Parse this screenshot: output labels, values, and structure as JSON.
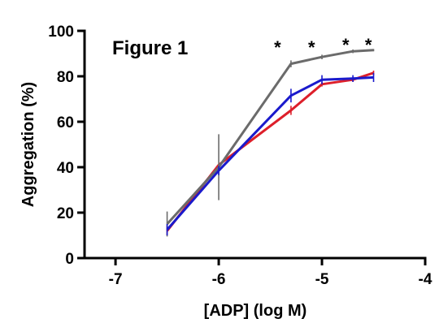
{
  "chart_data": {
    "type": "line",
    "title": "Figure 1",
    "xlabel": "[ADP] (log M)",
    "ylabel": "Aggregation (%)",
    "xlim": [
      -7.3,
      -4
    ],
    "ylim": [
      0,
      100
    ],
    "x_ticks": [
      -7,
      -6,
      -5,
      -4
    ],
    "y_ticks": [
      0,
      20,
      40,
      60,
      80,
      100
    ],
    "x_tick_labels": [
      "-7",
      "-6",
      "-5",
      "-4"
    ],
    "y_tick_labels": [
      "0",
      "20",
      "40",
      "60",
      "80",
      "100"
    ],
    "grid": false,
    "annotations": [
      {
        "text": "*",
        "x": -5.43,
        "y": 95
      },
      {
        "text": "*",
        "x": -5.1,
        "y": 95
      },
      {
        "text": "*",
        "x": -4.77,
        "y": 96
      },
      {
        "text": "*",
        "x": -4.55,
        "y": 96
      }
    ],
    "series": [
      {
        "color": "#dd1f2a",
        "x": [
          -6.5,
          -6,
          -5.3,
          -5,
          -4.7,
          -4.5
        ],
        "values": [
          12,
          41,
          65,
          76.5,
          78.5,
          81.5
        ],
        "errors": [
          2,
          0,
          2,
          1,
          1,
          1
        ]
      },
      {
        "color": "#6b6b6b",
        "x": [
          -6.5,
          -6,
          -5.3,
          -5,
          -4.7,
          -4.5
        ],
        "values": [
          15,
          40,
          85.5,
          88.5,
          91,
          91.5
        ],
        "errors": [
          5.5,
          14.5,
          1.5,
          1,
          0.8,
          0.5
        ]
      },
      {
        "color": "#1a1acc",
        "x": [
          -6.5,
          -6,
          -5.3,
          -5,
          -4.7,
          -4.5
        ],
        "values": [
          12.5,
          38.5,
          71.5,
          78.5,
          79,
          79.5
        ],
        "errors": [
          2.5,
          2,
          3,
          2,
          1.5,
          2
        ]
      }
    ]
  }
}
